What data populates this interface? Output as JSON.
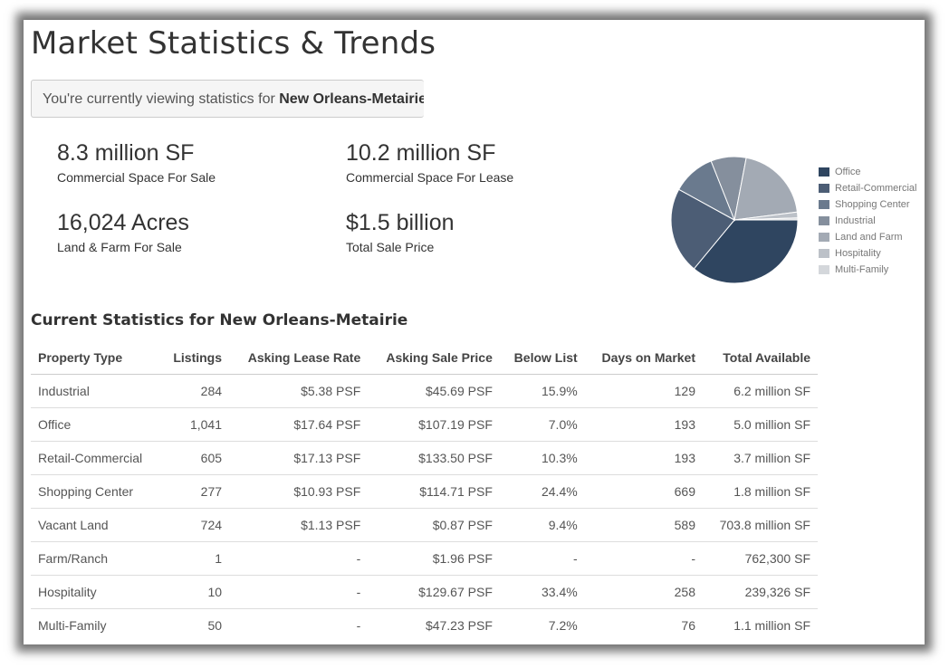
{
  "page": {
    "title": "Market Statistics & Trends",
    "viewing_prefix": "You're currently viewing statistics for ",
    "viewing_market": "New Orleans-Metairie"
  },
  "stats": [
    {
      "value": "8.3 million SF",
      "label": "Commercial Space For Sale"
    },
    {
      "value": "10.2 million SF",
      "label": "Commercial Space For Lease"
    },
    {
      "value": "16,024 Acres",
      "label": "Land & Farm For Sale"
    },
    {
      "value": "$1.5 billion",
      "label": "Total Sale Price"
    }
  ],
  "chart_data": {
    "type": "pie",
    "categories": [
      "Office",
      "Retail-Commercial",
      "Shopping Center",
      "Industrial",
      "Land and Farm",
      "Hospitality",
      "Multi-Family"
    ],
    "values": [
      36,
      22,
      11,
      9,
      20,
      1.5,
      0.5
    ],
    "colors": [
      "#2f4560",
      "#4c5d75",
      "#6a7a8e",
      "#858f9d",
      "#a3aab4",
      "#bcc1c8",
      "#d4d7db"
    ],
    "legend_position": "right"
  },
  "table": {
    "title": "Current Statistics for New Orleans-Metairie",
    "columns": [
      "Property Type",
      "Listings",
      "Asking Lease Rate",
      "Asking Sale Price",
      "Below List",
      "Days on Market",
      "Total Available"
    ],
    "rows": [
      [
        "Industrial",
        "284",
        "$5.38 PSF",
        "$45.69 PSF",
        "15.9%",
        "129",
        "6.2 million SF"
      ],
      [
        "Office",
        "1,041",
        "$17.64 PSF",
        "$107.19 PSF",
        "7.0%",
        "193",
        "5.0 million SF"
      ],
      [
        "Retail-Commercial",
        "605",
        "$17.13 PSF",
        "$133.50 PSF",
        "10.3%",
        "193",
        "3.7 million SF"
      ],
      [
        "Shopping Center",
        "277",
        "$10.93 PSF",
        "$114.71 PSF",
        "24.4%",
        "669",
        "1.8 million SF"
      ],
      [
        "Vacant Land",
        "724",
        "$1.13 PSF",
        "$0.87 PSF",
        "9.4%",
        "589",
        "703.8 million SF"
      ],
      [
        "Farm/Ranch",
        "1",
        "-",
        "$1.96 PSF",
        "-",
        "-",
        "762,300 SF"
      ],
      [
        "Hospitality",
        "10",
        "-",
        "$129.67 PSF",
        "33.4%",
        "258",
        "239,326 SF"
      ],
      [
        "Multi-Family",
        "50",
        "-",
        "$47.23 PSF",
        "7.2%",
        "76",
        "1.1 million SF"
      ]
    ]
  }
}
